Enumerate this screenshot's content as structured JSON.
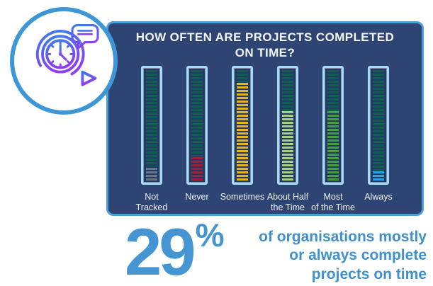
{
  "header": {
    "title_line1": "HOW OFTEN ARE PROJECTS COMPLETED",
    "title_line2": "ON TIME?"
  },
  "chart_data": {
    "type": "bar",
    "title": "HOW OFTEN ARE PROJECTS COMPLETED ON TIME?",
    "categories": [
      "Not Tracked",
      "Never",
      "Sometimes",
      "About Half the Time",
      "Most of the Time",
      "Always"
    ],
    "category_lines": [
      [
        "Not",
        "Tracked"
      ],
      [
        "Never"
      ],
      [
        "Sometimes"
      ],
      [
        "About Half",
        "the Time"
      ],
      [
        "Most",
        "of the Time"
      ],
      [
        "Always"
      ]
    ],
    "values": [
      13,
      22,
      89,
      63,
      63,
      9
    ],
    "values_unit": "percent fill of thermometer bar (estimated from pixels)",
    "bar_colors": [
      "#6e7582",
      "#9e2038",
      "#e9b31e",
      "#a9ce7e",
      "#45a03a",
      "#2aa4e8"
    ],
    "track_color": "#0f5e4f",
    "ylim": [
      0,
      100
    ],
    "grid": false,
    "legend": "none"
  },
  "stat": {
    "value": "29",
    "unit": "%",
    "caption_lines": [
      "of organisations mostly",
      "or always complete",
      "projects on time"
    ]
  },
  "icon": {
    "name": "agile-sprint-clock-icon",
    "parts": [
      "clock-icon",
      "speech-bubble-icon",
      "sprint-arrow-icon"
    ]
  },
  "colors": {
    "page_bg": "#ffffff",
    "panel_bg": "#2e4472",
    "panel_border": "#4a9fd9",
    "bar_border": "#a6dcf2",
    "bar_inner_bg": "#223a66",
    "track_stripe": "#0f5e4f",
    "title_color": "#f2f6fb",
    "label_color": "#eef3fa",
    "stat_blue": "#4495d2",
    "caption_blue": "#3f90cd",
    "icon_ring": "#3d96d5",
    "icon_gradient_start": "#3a7de8",
    "icon_gradient_end": "#8f3df2"
  }
}
